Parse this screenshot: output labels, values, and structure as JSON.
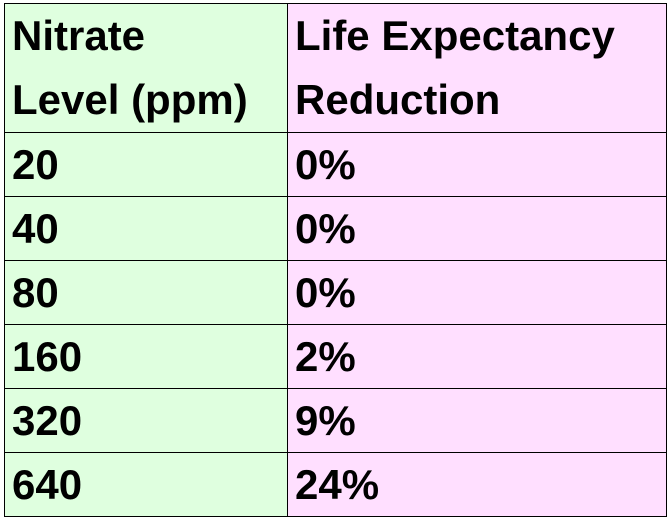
{
  "colors": {
    "left_column_bg": "#dfffdf",
    "right_column_bg": "#ffdfff",
    "border": "#000000",
    "text": "#000000"
  },
  "chart_data": {
    "type": "table",
    "columns": [
      "Nitrate Level (ppm)",
      "Life Expectancy Reduction"
    ],
    "header_lines": [
      [
        "Nitrate",
        "Level (ppm)"
      ],
      [
        "Life Expectancy",
        "Reduction"
      ]
    ],
    "rows": [
      [
        "20",
        "0%"
      ],
      [
        "40",
        "0%"
      ],
      [
        "80",
        "0%"
      ],
      [
        "160",
        "2%"
      ],
      [
        "320",
        "9%"
      ],
      [
        "640",
        "24%"
      ]
    ]
  }
}
